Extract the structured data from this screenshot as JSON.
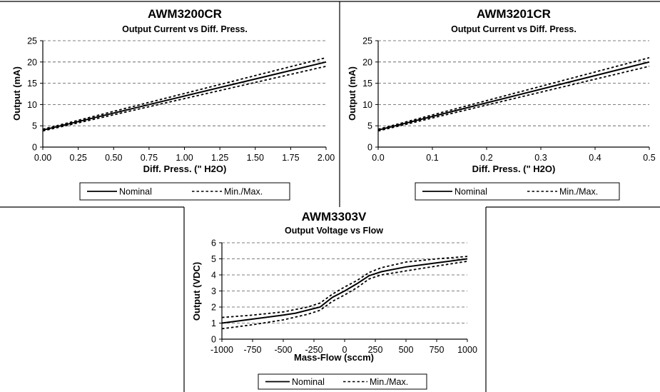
{
  "chart_data": [
    {
      "type": "line",
      "title": "AWM3200CR",
      "subtitle": "Output Current vs Diff. Press.",
      "xlabel": "Diff. Press. (\" H2O)",
      "ylabel": "Output (mA)",
      "xlim": [
        0,
        2
      ],
      "ylim": [
        0,
        25
      ],
      "xticks": [
        "0.00",
        "0.25",
        "0.50",
        "0.75",
        "1.00",
        "1.25",
        "1.50",
        "1.75",
        "2.00"
      ],
      "yticks": [
        "0",
        "5",
        "10",
        "15",
        "20",
        "25"
      ],
      "grid": "horizontal dashed",
      "legend_position": "bottom",
      "series": [
        {
          "name": "Nominal",
          "style": "solid",
          "x": [
            0,
            2
          ],
          "y": [
            4,
            20
          ]
        },
        {
          "name": "Min./Max.",
          "style": "dashed",
          "x": [
            0,
            2
          ],
          "y": [
            4.2,
            21
          ]
        },
        {
          "style": "dashed",
          "x": [
            0,
            2
          ],
          "y": [
            3.8,
            19
          ]
        }
      ]
    },
    {
      "type": "line",
      "title": "AWM3201CR",
      "subtitle": "Output Current vs Diff. Press.",
      "xlabel": "Diff. Press. (\" H2O)",
      "ylabel": "Output (mA)",
      "xlim": [
        0,
        0.5
      ],
      "ylim": [
        0,
        25
      ],
      "xticks": [
        "0.0",
        "0.1",
        "0.2",
        "0.3",
        "0.4",
        "0.5"
      ],
      "yticks": [
        "0",
        "5",
        "10",
        "15",
        "20",
        "25"
      ],
      "grid": "horizontal dashed",
      "legend_position": "bottom",
      "series": [
        {
          "name": "Nominal",
          "style": "solid",
          "x": [
            0,
            0.5
          ],
          "y": [
            4,
            20
          ]
        },
        {
          "name": "Min./Max.",
          "style": "dashed",
          "x": [
            0,
            0.5
          ],
          "y": [
            4.2,
            21
          ]
        },
        {
          "style": "dashed",
          "x": [
            0,
            0.5
          ],
          "y": [
            3.8,
            19
          ]
        }
      ]
    },
    {
      "type": "line",
      "title": "AWM3303V",
      "subtitle": "Output Voltage vs Flow",
      "xlabel": "Mass-Flow (sccm)",
      "ylabel": "Output (VDC)",
      "xlim": [
        -1000,
        1000
      ],
      "ylim": [
        0,
        6
      ],
      "xticks": [
        "-1000",
        "-750",
        "-500",
        "-250",
        "0",
        "250",
        "500",
        "750",
        "1000"
      ],
      "yticks": [
        "0",
        "1",
        "2",
        "3",
        "4",
        "5",
        "6"
      ],
      "grid": "horizontal dashed",
      "legend_position": "bottom",
      "series": [
        {
          "name": "Nominal",
          "style": "solid",
          "x": [
            -1000,
            -750,
            -500,
            -400,
            -200,
            -100,
            0,
            100,
            200,
            300,
            500,
            750,
            1000
          ],
          "y": [
            1.0,
            1.25,
            1.5,
            1.62,
            2.0,
            2.6,
            3.0,
            3.45,
            3.95,
            4.2,
            4.5,
            4.75,
            5.0
          ]
        },
        {
          "name": "Min./Max.",
          "style": "dashed",
          "x": [
            -1000,
            -750,
            -500,
            -300,
            -200,
            -100,
            0,
            100,
            200,
            300,
            500,
            750,
            1000
          ],
          "y": [
            1.35,
            1.5,
            1.7,
            2.0,
            2.25,
            2.8,
            3.25,
            3.65,
            4.15,
            4.45,
            4.8,
            5.0,
            5.15
          ]
        },
        {
          "style": "dashed",
          "x": [
            -1000,
            -750,
            -500,
            -300,
            -200,
            -100,
            0,
            100,
            200,
            300,
            500,
            750,
            1000
          ],
          "y": [
            0.65,
            0.9,
            1.2,
            1.55,
            1.8,
            2.35,
            2.75,
            3.2,
            3.75,
            4.0,
            4.25,
            4.55,
            4.85
          ]
        }
      ]
    }
  ]
}
